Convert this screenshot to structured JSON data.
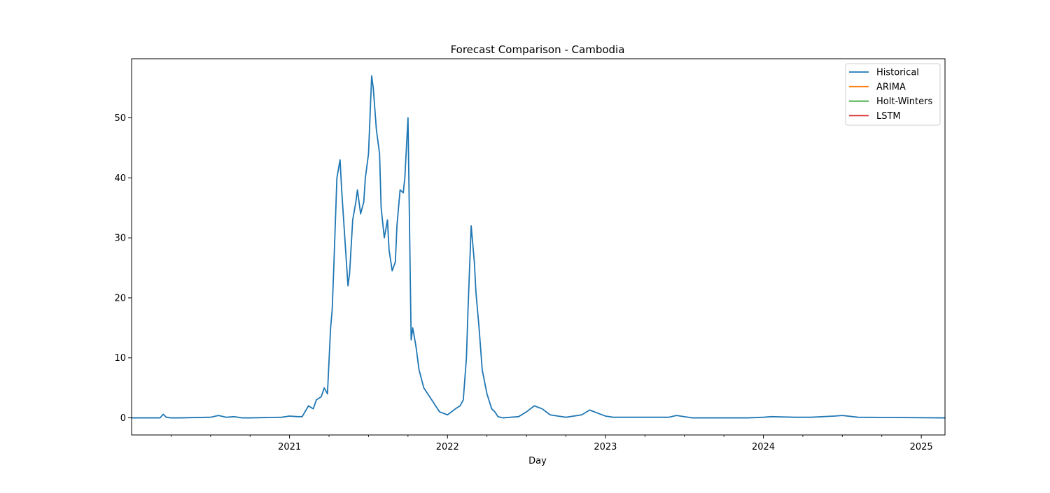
{
  "chart_data": {
    "type": "line",
    "title": "Forecast Comparison - Cambodia",
    "xlabel": "Day",
    "ylabel": "",
    "xlim": [
      2020.0,
      2025.15
    ],
    "ylim": [
      -2.85,
      59.85
    ],
    "x_major_ticks": [
      {
        "value": 2021,
        "label": "2021"
      },
      {
        "value": 2022,
        "label": "2022"
      },
      {
        "value": 2023,
        "label": "2023"
      },
      {
        "value": 2024,
        "label": "2024"
      },
      {
        "value": 2025,
        "label": "2025"
      }
    ],
    "x_minor_ticks": [
      2020.25,
      2020.5,
      2020.75,
      2021.25,
      2021.5,
      2021.75,
      2022.25,
      2022.5,
      2022.75,
      2023.25,
      2023.5,
      2023.75,
      2024.25,
      2024.5,
      2024.75
    ],
    "y_ticks": [
      {
        "value": 0,
        "label": "0"
      },
      {
        "value": 10,
        "label": "10"
      },
      {
        "value": 20,
        "label": "20"
      },
      {
        "value": 30,
        "label": "30"
      },
      {
        "value": 40,
        "label": "40"
      },
      {
        "value": 50,
        "label": "50"
      }
    ],
    "legend_position": "top-right",
    "series": [
      {
        "name": "Historical",
        "color": "#1f77b4",
        "x": [
          2020.0,
          2020.18,
          2020.2,
          2020.22,
          2020.25,
          2020.3,
          2020.5,
          2020.55,
          2020.6,
          2020.65,
          2020.7,
          2020.75,
          2020.95,
          2021.0,
          2021.05,
          2021.08,
          2021.12,
          2021.15,
          2021.17,
          2021.2,
          2021.22,
          2021.24,
          2021.26,
          2021.27,
          2021.28,
          2021.3,
          2021.32,
          2021.33,
          2021.35,
          2021.37,
          2021.38,
          2021.4,
          2021.42,
          2021.43,
          2021.45,
          2021.47,
          2021.48,
          2021.5,
          2021.52,
          2021.53,
          2021.55,
          2021.57,
          2021.58,
          2021.6,
          2021.62,
          2021.63,
          2021.65,
          2021.67,
          2021.68,
          2021.7,
          2021.72,
          2021.73,
          2021.75,
          2021.77,
          2021.78,
          2021.8,
          2021.82,
          2021.85,
          2021.9,
          2021.95,
          2022.0,
          2022.05,
          2022.08,
          2022.1,
          2022.12,
          2022.13,
          2022.14,
          2022.15,
          2022.17,
          2022.18,
          2022.2,
          2022.22,
          2022.25,
          2022.28,
          2022.3,
          2022.32,
          2022.35,
          2022.45,
          2022.5,
          2022.55,
          2022.6,
          2022.65,
          2022.7,
          2022.75,
          2022.85,
          2022.9,
          2022.95,
          2023.0,
          2023.05,
          2023.4,
          2023.45,
          2023.5,
          2023.55,
          2023.9,
          2024.0,
          2024.05,
          2024.2,
          2024.3,
          2024.45,
          2024.5,
          2024.6,
          2025.15
        ],
        "y": [
          0,
          0,
          0.6,
          0.1,
          0,
          0,
          0.1,
          0.4,
          0.1,
          0.2,
          0,
          0,
          0.1,
          0.3,
          0.2,
          0.2,
          2.0,
          1.5,
          3.0,
          3.5,
          5.0,
          4.0,
          15.0,
          18.0,
          25.0,
          40.0,
          43.0,
          38.0,
          30.0,
          22.0,
          24.0,
          33.0,
          36.0,
          38.0,
          34.0,
          36.0,
          40.0,
          44.0,
          57.0,
          55.0,
          48.0,
          44.0,
          35.0,
          30.0,
          33.0,
          28.0,
          24.5,
          26.0,
          32.0,
          38.0,
          37.5,
          40.0,
          50.0,
          13.0,
          15.0,
          12.0,
          8.0,
          5.0,
          3.0,
          1.0,
          0.5,
          1.5,
          2.0,
          3.0,
          10.0,
          18.0,
          25.0,
          32.0,
          26.0,
          21.0,
          15.0,
          8.0,
          4.0,
          1.5,
          1.0,
          0.2,
          0,
          0.2,
          1.0,
          2.0,
          1.5,
          0.5,
          0.3,
          0.1,
          0.5,
          1.3,
          0.8,
          0.3,
          0.1,
          0.1,
          0.4,
          0.2,
          0,
          0,
          0.1,
          0.2,
          0.1,
          0.1,
          0.3,
          0.4,
          0.1,
          0
        ]
      },
      {
        "name": "ARIMA",
        "color": "#ff7f0e",
        "x": [],
        "y": []
      },
      {
        "name": "Holt-Winters",
        "color": "#2ca02c",
        "x": [],
        "y": []
      },
      {
        "name": "LSTM",
        "color": "#d62728",
        "x": [],
        "y": []
      }
    ]
  }
}
